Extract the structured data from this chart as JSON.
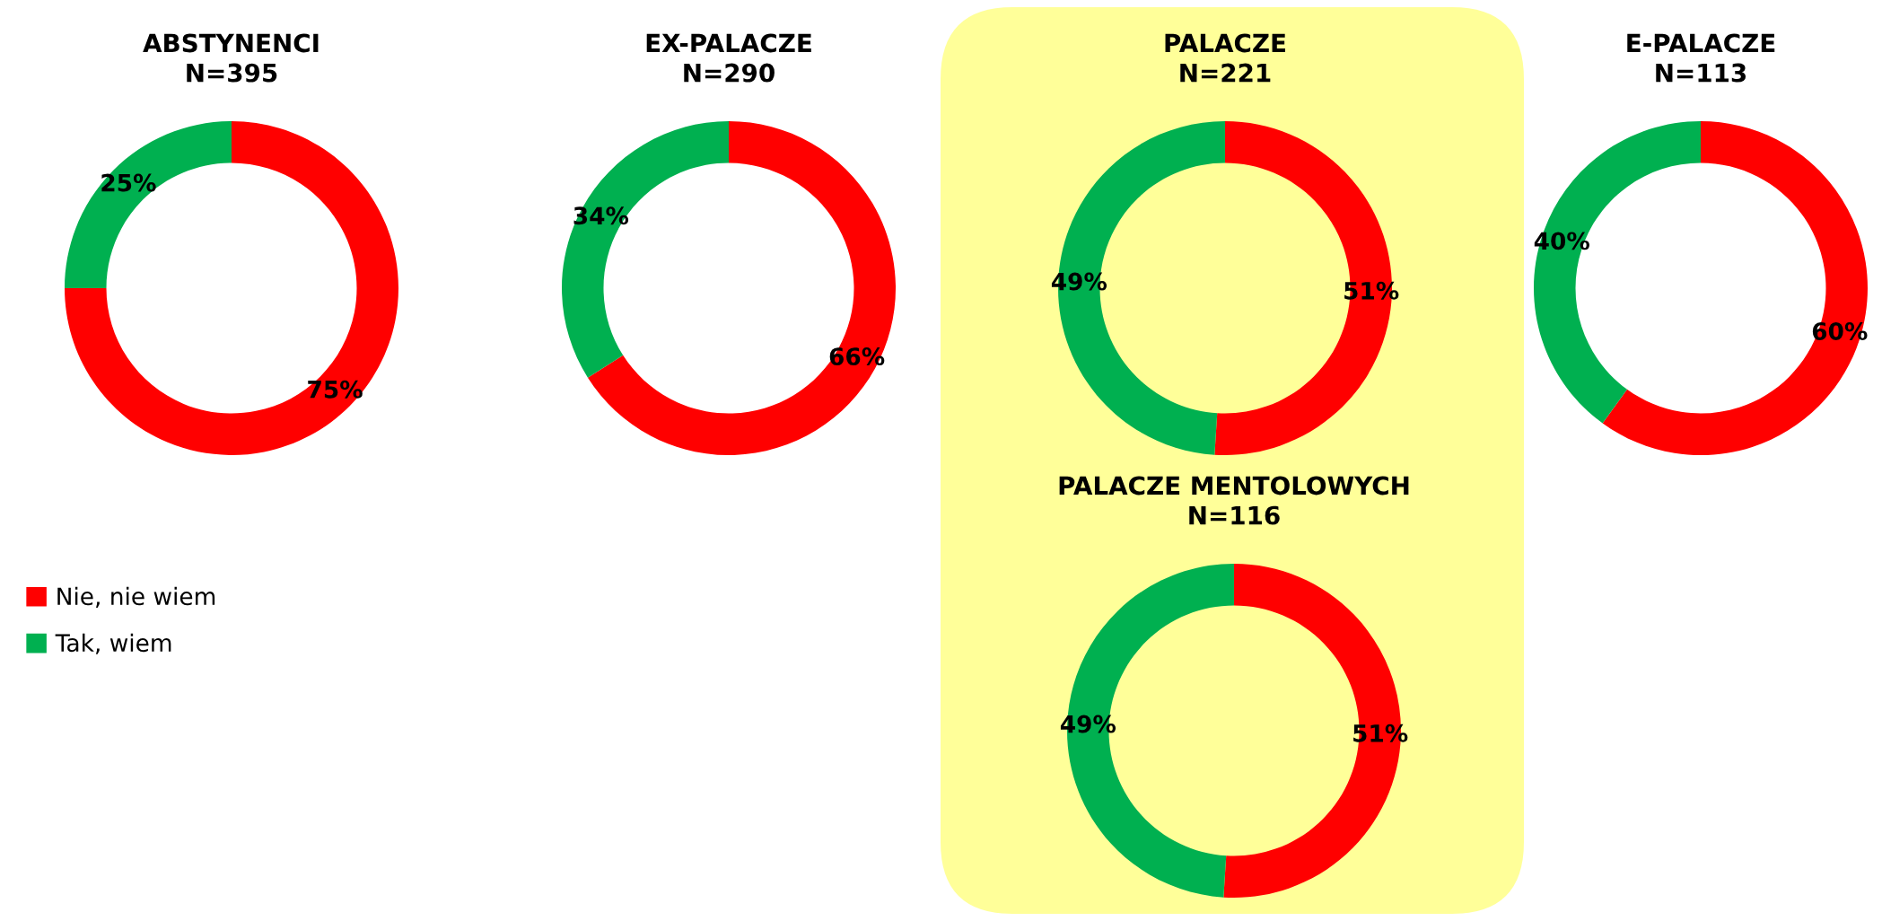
{
  "chart_data": [
    {
      "type": "donut",
      "title": "ABSTYNENCI",
      "subtitle": "N=395",
      "categories": [
        "Nie, nie wiem",
        "Tak, wiem"
      ],
      "values": [
        75,
        25
      ],
      "value_labels": [
        "75%",
        "25%"
      ],
      "colors": [
        "#ff0000",
        "#00b050"
      ],
      "legend": "left"
    },
    {
      "type": "donut",
      "title": "EX-PALACZE",
      "subtitle": "N=290",
      "categories": [
        null,
        null
      ],
      "values": [
        66,
        34
      ],
      "value_labels": [
        "66%",
        "34%"
      ],
      "colors": [
        "#ff0000",
        "#00b050"
      ]
    },
    {
      "type": "donut",
      "title": "PALACZE",
      "subtitle": "N=221",
      "categories": [
        null,
        null
      ],
      "values": [
        51,
        49
      ],
      "value_labels": [
        "51%",
        "49%"
      ],
      "colors": [
        "#ff0000",
        "#00b050"
      ]
    },
    {
      "type": "donut",
      "title": "E-PALACZE",
      "subtitle": "N=113",
      "categories": [
        null,
        null
      ],
      "values": [
        60,
        40
      ],
      "value_labels": [
        "60%",
        "40%"
      ],
      "colors": [
        "#ff0000",
        "#00b050"
      ]
    },
    {
      "type": "donut",
      "title": "PALACZE MENTOLOWYCH",
      "subtitle": "N=116",
      "categories": [
        null,
        null
      ],
      "values": [
        51,
        49
      ],
      "value_labels": [
        "51%",
        "49%"
      ],
      "colors": [
        "#ff0000",
        "#00b050"
      ]
    }
  ]
}
